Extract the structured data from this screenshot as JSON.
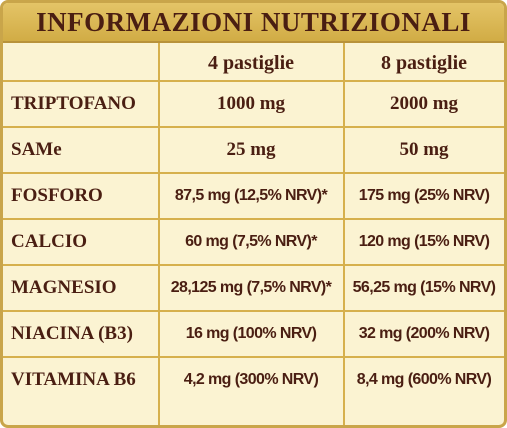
{
  "title": "INFORMAZIONI NUTRIZIONALI",
  "columns": [
    "4 pastiglie",
    "8 pastiglie"
  ],
  "rows": [
    {
      "name": "TRIPTOFANO",
      "v1": "1000 mg",
      "v2": "2000 mg"
    },
    {
      "name": "SAMe",
      "v1": "25 mg",
      "v2": "50 mg"
    },
    {
      "name": "FOSFORO",
      "v1": "87,5 mg (12,5% NRV)*",
      "v2": "175 mg (25% NRV)"
    },
    {
      "name": "CALCIO",
      "v1": "60 mg (7,5% NRV)*",
      "v2": "120 mg (15% NRV)"
    },
    {
      "name": "MAGNESIO",
      "v1": "28,125 mg (7,5% NRV)*",
      "v2": "56,25 mg (15% NRV)"
    },
    {
      "name": "NIACINA (B3)",
      "v1": "16 mg (100% NRV)",
      "v2": "32 mg (200% NRV)"
    },
    {
      "name": "VITAMINA B6",
      "v1": "4,2 mg (300% NRV)",
      "v2": "8,4 mg (600% NRV)"
    }
  ],
  "colors": {
    "background": "#fbf3d2",
    "header": "#d9b656",
    "text": "#4a1e12",
    "border": "#c9a54a"
  }
}
